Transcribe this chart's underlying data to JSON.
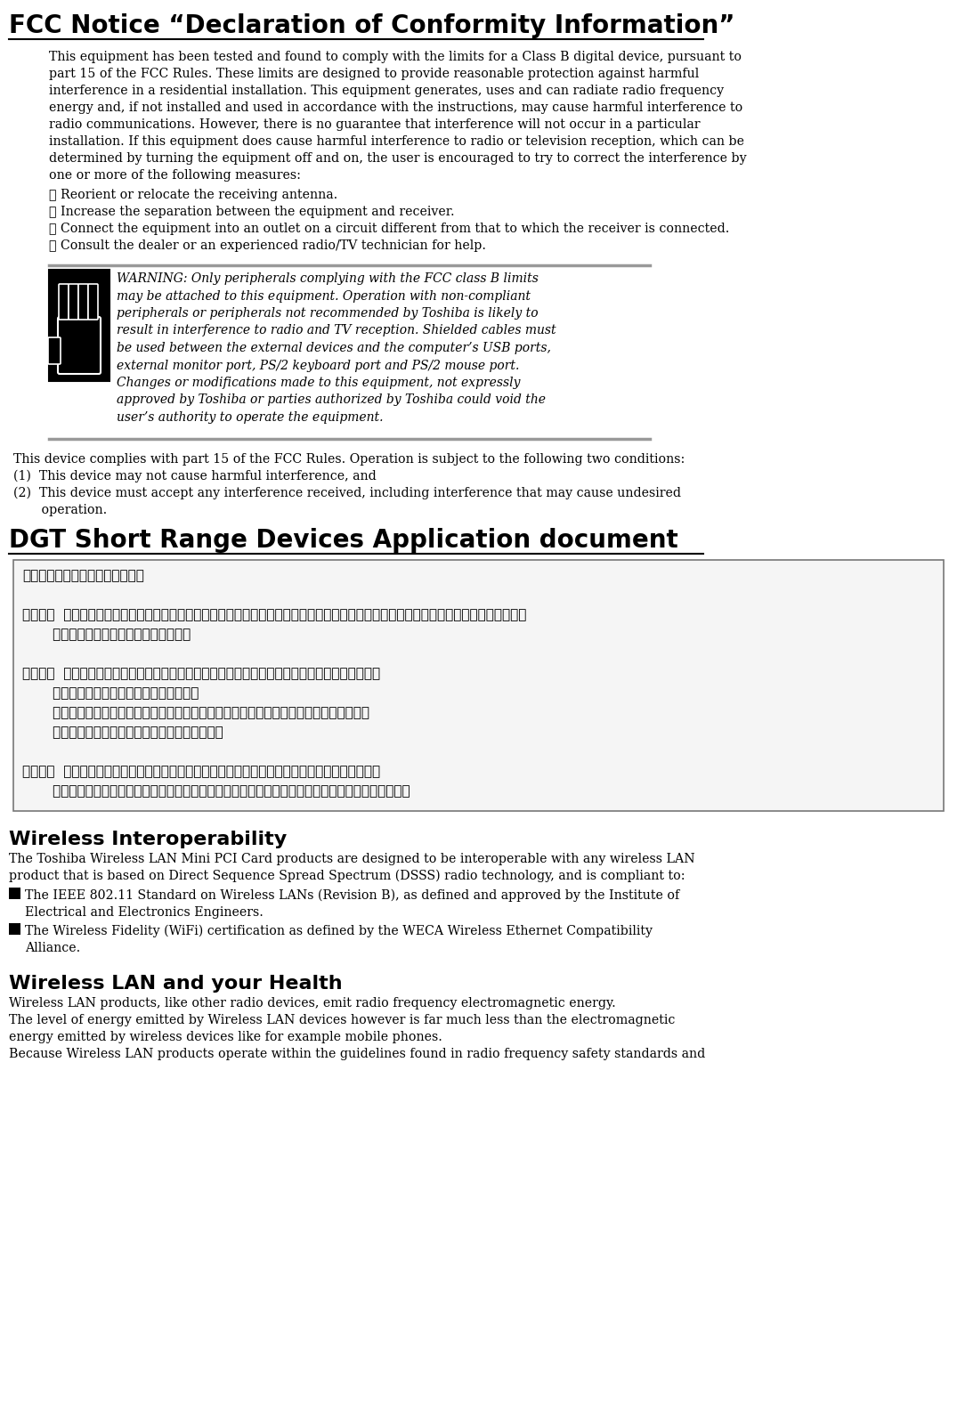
{
  "bg_color": "#ffffff",
  "title": "FCC Notice “Declaration of Conformity Information”",
  "para1_lines": [
    "This equipment has been tested and found to comply with the limits for a Class B digital device, pursuant to",
    "part 15 of the FCC Rules. These limits are designed to provide reasonable protection against harmful",
    "interference in a residential installation. This equipment generates, uses and can radiate radio frequency",
    "energy and, if not installed and used in accordance with the instructions, may cause harmful interference to",
    "radio communications. However, there is no guarantee that interference will not occur in a particular",
    "installation. If this equipment does cause harmful interference to radio or television reception, which can be",
    "determined by turning the equipment off and on, the user is encouraged to try to correct the interference by",
    "one or more of the following measures:"
  ],
  "bullets": [
    "✿ Reorient or relocate the receiving antenna.",
    "✿ Increase the separation between the equipment and receiver.",
    "✿ Connect the equipment into an outlet on a circuit different from that to which the receiver is connected.",
    "✿ Consult the dealer or an experienced radio/TV technician for help."
  ],
  "warning_lines": [
    "WARNING: Only peripherals complying with the FCC class B limits",
    "may be attached to this equipment. Operation with non-compliant",
    "peripherals or peripherals not recommended by Toshiba is likely to",
    "result in interference to radio and TV reception. Shielded cables must",
    "be used between the external devices and the computer’s USB ports,",
    "external monitor port, PS/2 keyboard port and PS/2 mouse port.",
    "Changes or modifications made to this equipment, not expressly",
    "approved by Toshiba or parties authorized by Toshiba could void the",
    "user’s authority to operate the equipment."
  ],
  "fcc_lines": [
    "This device complies with part 15 of the FCC Rules. Operation is subject to the following two conditions:",
    "(1)  This device may not cause harmful interference, and",
    "(2)  This device must accept any interference received, including interference that may cause undesired",
    "       operation."
  ],
  "dgt_title": "DGT Short Range Devices Application document",
  "dgt_lines": [
    "根據交通部低功率管理辦法規定：",
    "",
    "第十四條  經型式認證合格之低功率射頻電機，非經許可，公司、商號或使用者均不得擅自變更頻率、加大功率或變更原設計之特性及功能。",
    "       加大功率或變更原設計之特性及功能。",
    "",
    "第十七條  低功率射頻電機之使用不得影響飛航安全及干擾合法通信；經發現有干擾現象時，應立即",
    "       停用，並改善至無干擾時方得繼續使用。",
    "       前項合法通信，指依電信法規定作業之無線電通信。低功率射頻電機須忍受合法通信或工",
    "       業、科學及醫療用電波輺射性電機設備之干擾。",
    "",
    "第二十條  輸入、製造低功率射頻電機之公司、商號或其使用者違反本辦法規定，擅自使用或變更無",
    "       線電頻率、電功率者，除依電信法規定處罰外，電信總局並得撤銷其型式認證證明或型式認證標簽。"
  ],
  "wireless_title": "Wireless Interoperability",
  "wireless_para_lines": [
    "The Toshiba Wireless LAN Mini PCI Card products are designed to be interoperable with any wireless LAN",
    "product that is based on Direct Sequence Spread Spectrum (DSSS) radio technology, and is compliant to:"
  ],
  "wireless_bullet_lines": [
    [
      "The IEEE 802.11 Standard on Wireless LANs (Revision B), as defined and approved by the Institute of",
      "Electrical and Electronics Engineers."
    ],
    [
      "The Wireless Fidelity (WiFi) certification as defined by the WECA Wireless Ethernet Compatibility",
      "Alliance."
    ]
  ],
  "health_title": "Wireless LAN and your Health",
  "health_lines": [
    "Wireless LAN products, like other radio devices, emit radio frequency electromagnetic energy.",
    "The level of energy emitted by Wireless LAN devices however is far much less than the electromagnetic",
    "energy emitted by wireless devices like for example mobile phones.",
    "Because Wireless LAN products operate within the guidelines found in radio frequency safety standards and"
  ]
}
